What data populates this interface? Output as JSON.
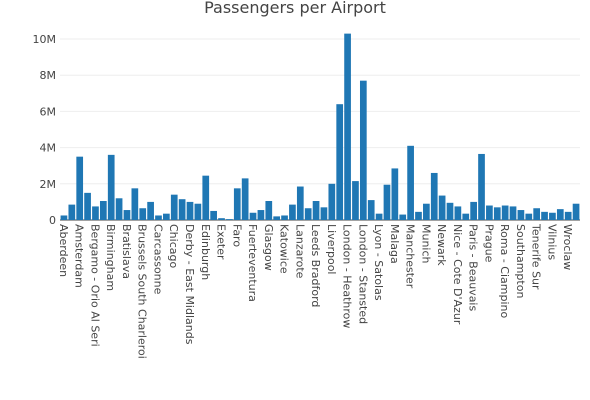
{
  "chart_data": {
    "type": "bar",
    "title": "Passengers per Airport",
    "xlabel": "",
    "ylabel": "",
    "ylim": [
      0,
      10500000
    ],
    "y_ticks": [
      0,
      2000000,
      4000000,
      6000000,
      8000000,
      10000000
    ],
    "y_tick_labels": [
      "0",
      "2M",
      "4M",
      "6M",
      "8M",
      "10M"
    ],
    "grid": true,
    "bar_color": "#1f77b4",
    "categories": [
      "Aberdeen",
      "(unlabeled)",
      "Amsterdam",
      "(unlabeled)",
      "Bergamo - Orio Al Serio",
      "(unlabeled)",
      "Birmingham",
      "(unlabeled)",
      "Bratislava",
      "(unlabeled)",
      "Brussels South Charleroi",
      "(unlabeled)",
      "Carcassonne",
      "(unlabeled)",
      "Chicago",
      "(unlabeled)",
      "Derby - East Midlands",
      "(unlabeled)",
      "Edinburgh",
      "(unlabeled)",
      "Exeter",
      "(unlabeled)",
      "Faro",
      "(unlabeled)",
      "Fuerteventura",
      "(unlabeled)",
      "Glasgow",
      "(unlabeled)",
      "Katowice",
      "(unlabeled)",
      "Lanzarote",
      "(unlabeled)",
      "Leeds Bradford",
      "(unlabeled)",
      "Liverpool",
      "(unlabeled)",
      "London - Heathrow",
      "(unlabeled)",
      "London - Stansted",
      "(unlabeled)",
      "Lyon - Satolas",
      "(unlabeled)",
      "Malaga",
      "(unlabeled)",
      "Manchester",
      "(unlabeled)",
      "Munich",
      "(unlabeled)",
      "Newark",
      "(unlabeled)",
      "Nice - Cote D'Azur",
      "(unlabeled)",
      "Paris - Beauvais",
      "(unlabeled)",
      "Prague",
      "(unlabeled)",
      "Roma - Ciampino",
      "(unlabeled)",
      "Southampton",
      "(unlabeled)",
      "Tenerife Sur",
      "(unlabeled)",
      "Vilnius",
      "(unlabeled)",
      "Wroclaw",
      "(unlabeled)"
    ],
    "tick_labels": [
      "Aberdeen",
      "Amsterdam",
      "Bergamo - Orio Al Seri",
      "Birmingham",
      "Bratislava",
      "Brussels South Charleroi",
      "Carcassonne",
      "Chicago",
      "Derby - East Midlands",
      "Edinburgh",
      "Exeter",
      "Faro",
      "Fuerteventura",
      "Glasgow",
      "Katowice",
      "Lanzarote",
      "Leeds Bradford",
      "Liverpool",
      "London - Heathrow",
      "London - Stansted",
      "Lyon - Satolas",
      "Malaga",
      "Manchester",
      "Munich",
      "Newark",
      "Nice - Cote D'Azur",
      "Paris - Beauvais",
      "Prague",
      "Roma - Ciampino",
      "Southampton",
      "Tenerife Sur",
      "Vilnius",
      "Wroclaw"
    ],
    "values": [
      250000,
      850000,
      3500000,
      1500000,
      750000,
      1050000,
      3600000,
      1200000,
      550000,
      1750000,
      650000,
      1000000,
      250000,
      350000,
      1400000,
      1150000,
      1000000,
      900000,
      2450000,
      500000,
      100000,
      50000,
      1750000,
      2300000,
      400000,
      550000,
      1050000,
      200000,
      250000,
      850000,
      1850000,
      650000,
      1050000,
      700000,
      2000000,
      6400000,
      10300000,
      2150000,
      7700000,
      1100000,
      350000,
      1950000,
      2850000,
      300000,
      4100000,
      450000,
      900000,
      2600000,
      1350000,
      950000,
      750000,
      350000,
      1000000,
      3650000,
      800000,
      700000,
      800000,
      750000,
      550000,
      350000,
      650000,
      450000,
      400000,
      600000,
      450000,
      900000
    ]
  }
}
